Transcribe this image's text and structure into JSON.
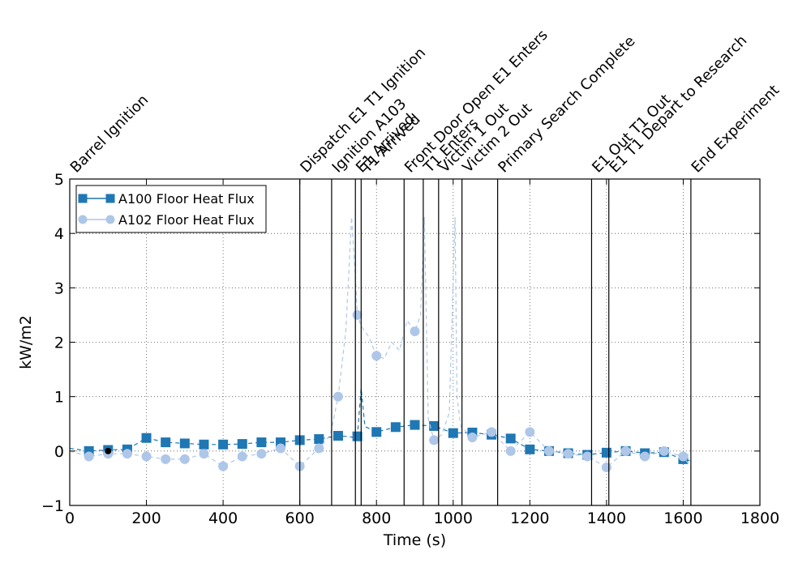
{
  "chart_data": {
    "type": "line",
    "xlabel": "Time (s)",
    "ylabel": "kW/m2",
    "xlim": [
      0,
      1800
    ],
    "ylim": [
      -1,
      5
    ],
    "xticks": [
      0,
      200,
      400,
      600,
      800,
      1000,
      1200,
      1400,
      1600,
      1800
    ],
    "yticks": [
      -1,
      0,
      1,
      2,
      3,
      4,
      5
    ],
    "grid": true,
    "legend_position": "top-left",
    "series": [
      {
        "name": "A100 Floor Heat Flux",
        "color": "#1f77b4",
        "marker": "square",
        "line_style": "dashed",
        "x": [
          0,
          50,
          100,
          150,
          200,
          250,
          300,
          350,
          400,
          450,
          500,
          550,
          600,
          650,
          700,
          720,
          740,
          750,
          760,
          770,
          800,
          850,
          900,
          950,
          1000,
          1050,
          1100,
          1150,
          1200,
          1250,
          1300,
          1350,
          1400,
          1450,
          1500,
          1550,
          1600,
          1620
        ],
        "y": [
          0.05,
          0.0,
          0.02,
          0.03,
          0.24,
          0.16,
          0.14,
          0.12,
          0.12,
          0.13,
          0.16,
          0.16,
          0.2,
          0.22,
          0.28,
          0.27,
          0.25,
          0.27,
          1.15,
          0.45,
          0.35,
          0.44,
          0.48,
          0.46,
          0.33,
          0.34,
          0.3,
          0.23,
          0.03,
          0.0,
          -0.04,
          -0.07,
          -0.03,
          0.0,
          -0.04,
          -0.02,
          -0.15,
          -0.18
        ]
      },
      {
        "name": "A102 Floor Heat Flux",
        "color": "#aec7e8",
        "marker": "circle",
        "line_style": "dashed",
        "x": [
          0,
          50,
          100,
          150,
          200,
          250,
          300,
          350,
          400,
          450,
          500,
          550,
          600,
          650,
          680,
          700,
          720,
          735,
          745,
          750,
          760,
          780,
          800,
          820,
          840,
          860,
          880,
          900,
          915,
          925,
          935,
          950,
          970,
          990,
          1005,
          1010,
          1020,
          1050,
          1100,
          1150,
          1200,
          1250,
          1300,
          1350,
          1400,
          1450,
          1500,
          1550,
          1600,
          1620
        ],
        "y": [
          0.0,
          -0.1,
          -0.05,
          -0.05,
          -0.1,
          -0.15,
          -0.15,
          -0.05,
          -0.28,
          -0.1,
          -0.05,
          0.05,
          -0.28,
          0.05,
          0.3,
          1.0,
          2.2,
          4.3,
          3.2,
          2.5,
          2.3,
          2.1,
          1.75,
          1.7,
          2.0,
          1.85,
          2.4,
          2.2,
          2.5,
          4.3,
          0.6,
          0.2,
          0.3,
          0.7,
          4.3,
          1.0,
          0.45,
          0.25,
          0.35,
          0.0,
          0.35,
          0.0,
          -0.05,
          -0.1,
          -0.3,
          0.0,
          -0.1,
          0.0,
          -0.1,
          -0.3
        ]
      }
    ],
    "events": [
      {
        "time": 0,
        "label": "Barrel Ignition",
        "line": false
      },
      {
        "time": 600,
        "label": "Dispatch E1 T1 Ignition",
        "line": true
      },
      {
        "time": 683,
        "label": "Ignition A103",
        "line": true
      },
      {
        "time": 745,
        "label": "E1 Arrived",
        "line": true
      },
      {
        "time": 760,
        "label": "T1 Arrived",
        "line": true
      },
      {
        "time": 872,
        "label": "Front Door Open E1 Enters",
        "line": true
      },
      {
        "time": 922,
        "label": "T1 Enters",
        "line": true
      },
      {
        "time": 962,
        "label": "Victim 1 Out",
        "line": true
      },
      {
        "time": 1023,
        "label": "Victim 2 Out",
        "line": true
      },
      {
        "time": 1116,
        "label": "Primary Search Complete",
        "line": true
      },
      {
        "time": 1361,
        "label": "E1 Out T1 Out",
        "line": true
      },
      {
        "time": 1406,
        "label": "E1 T1 Depart to Research",
        "line": true
      },
      {
        "time": 1620,
        "label": "End Experiment",
        "line": true
      }
    ],
    "annotation_point": {
      "x": 100,
      "y": 0.0
    }
  }
}
